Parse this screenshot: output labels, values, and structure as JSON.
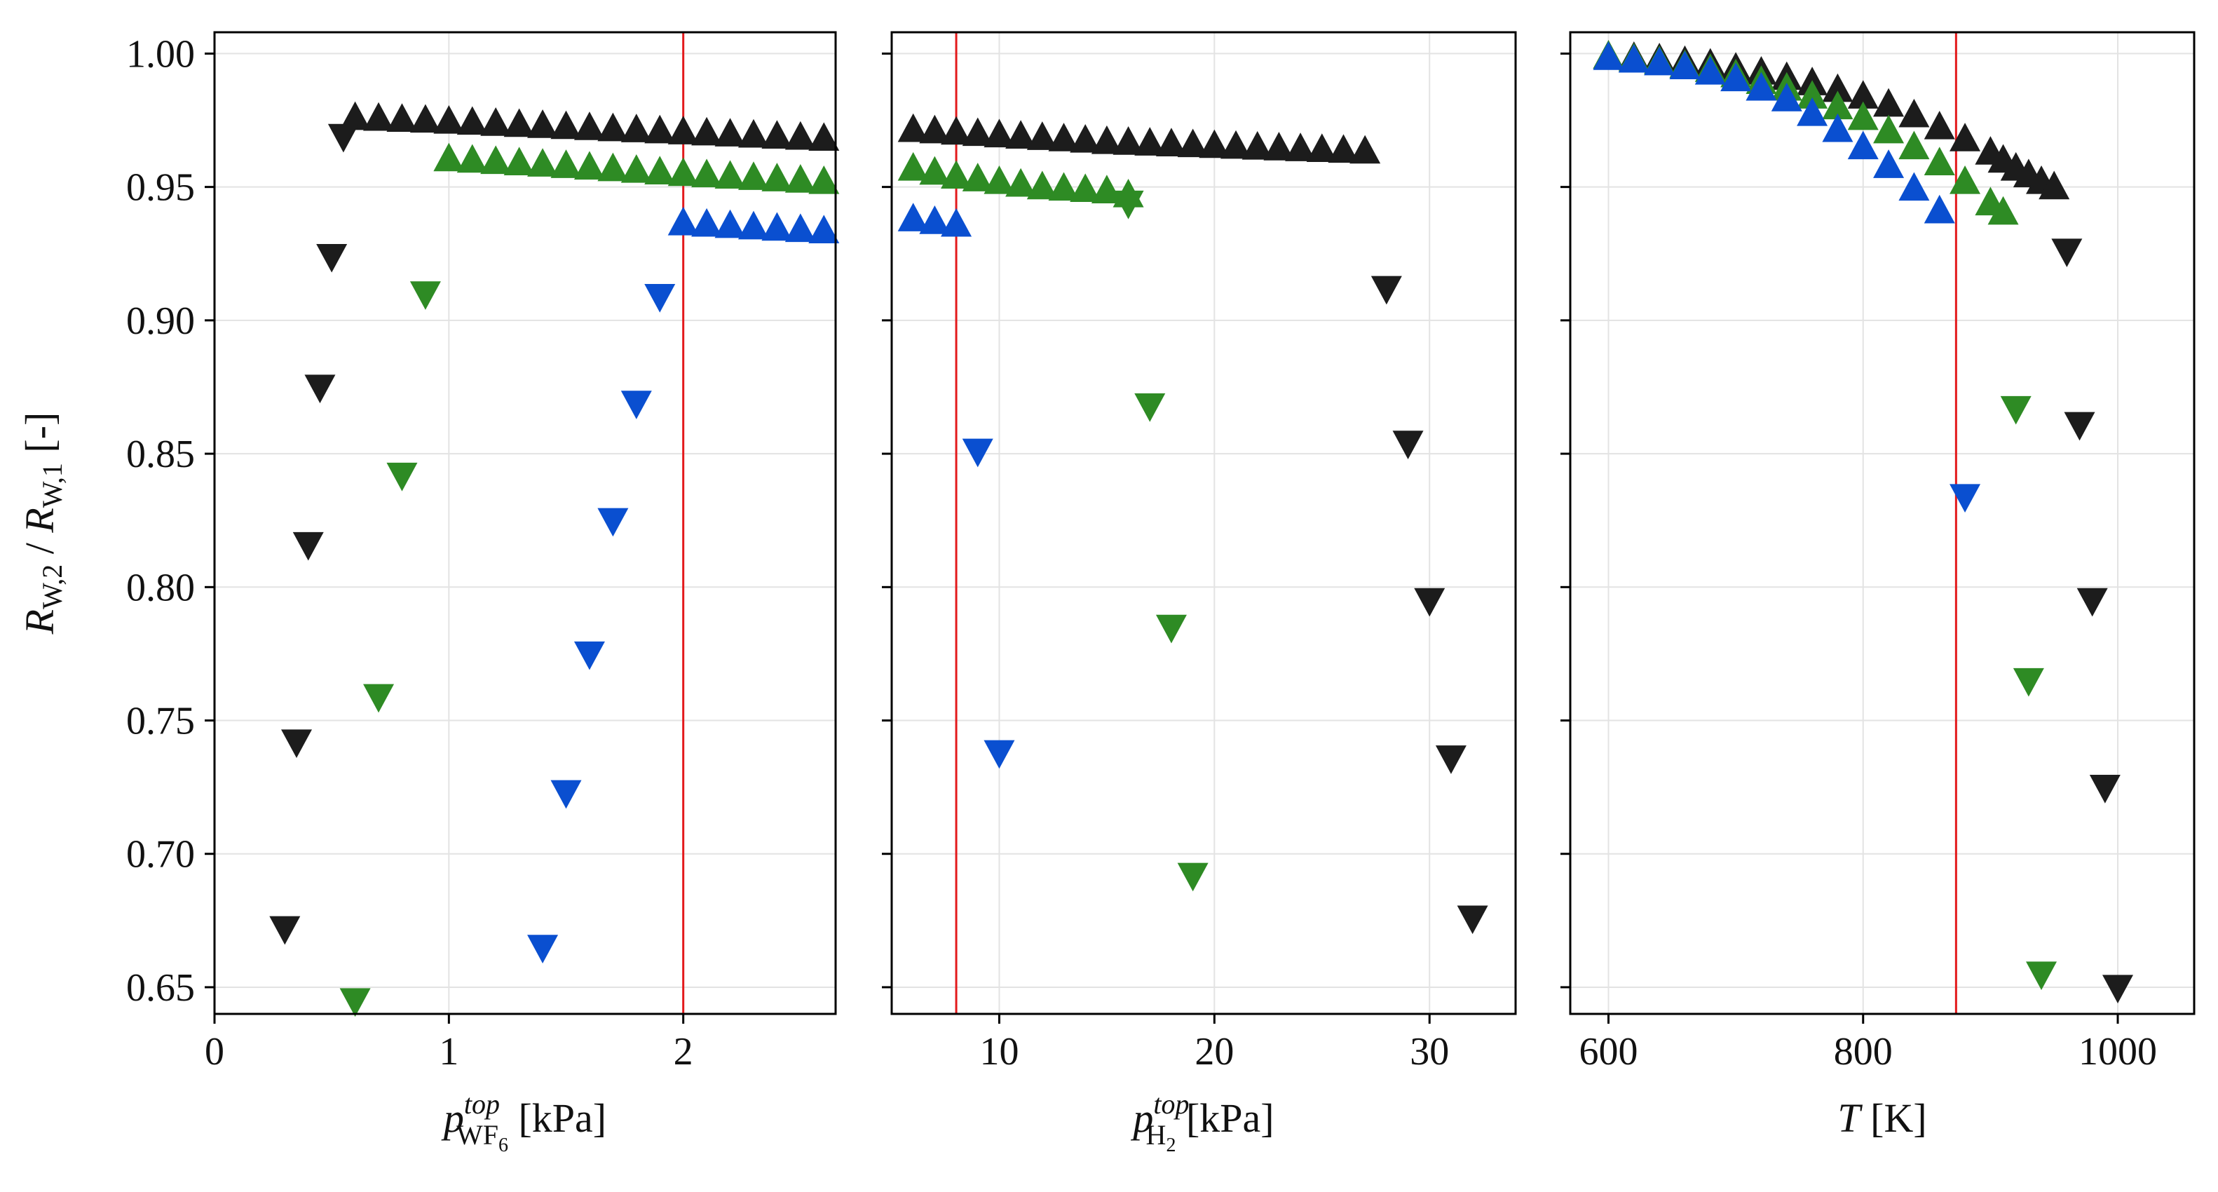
{
  "colors": {
    "black": "#1c1c1c",
    "green": "#2e8b24",
    "blue": "#0a4fd0",
    "ref_line": "#e31a1c",
    "grid": "#e3e3e3"
  },
  "markers": {
    "up": "triangle-up",
    "down": "triangle-down"
  },
  "chart_data": [
    {
      "type": "scatter",
      "xlabel": {
        "sym": "p",
        "sub": "WF",
        "subsub": "6",
        "sup": "top",
        "unit": " [kPa]"
      },
      "ylabel": {
        "r1": "R",
        "sub1": "W,2",
        "mid": " / ",
        "r2": "R",
        "sub2": "W,1",
        "unit": " [-]"
      },
      "xlim": [
        0,
        2.65
      ],
      "ylim": [
        0.64,
        1.008
      ],
      "xticks": [
        0,
        1,
        2
      ],
      "xtick_labels": [
        "0",
        "1",
        "2"
      ],
      "yticks": [
        0.65,
        0.7,
        0.75,
        0.8,
        0.85,
        0.9,
        0.95,
        1.0
      ],
      "ytick_labels": [
        "0.65",
        "0.70",
        "0.75",
        "0.80",
        "0.85",
        "0.90",
        "0.95",
        "1.00"
      ],
      "show_ytick_labels": true,
      "vline": 2.0,
      "series": [
        {
          "color": "black",
          "marker": "up",
          "points": [
            [
              0.6,
              0.976
            ],
            [
              0.7,
              0.9757
            ],
            [
              0.8,
              0.9753
            ],
            [
              0.9,
              0.975
            ],
            [
              1.0,
              0.9746
            ],
            [
              1.1,
              0.9742
            ],
            [
              1.2,
              0.9738
            ],
            [
              1.3,
              0.9734
            ],
            [
              1.4,
              0.973
            ],
            [
              1.5,
              0.9726
            ],
            [
              1.6,
              0.9722
            ],
            [
              1.7,
              0.9718
            ],
            [
              1.8,
              0.9714
            ],
            [
              1.9,
              0.971
            ],
            [
              2.0,
              0.9706
            ],
            [
              2.1,
              0.9702
            ],
            [
              2.2,
              0.9698
            ],
            [
              2.3,
              0.9694
            ],
            [
              2.4,
              0.969
            ],
            [
              2.5,
              0.9686
            ],
            [
              2.6,
              0.9682
            ]
          ]
        },
        {
          "color": "black",
          "marker": "down",
          "points": [
            [
              0.55,
              0.969
            ],
            [
              0.5,
              0.924
            ],
            [
              0.45,
              0.875
            ],
            [
              0.4,
              0.816
            ],
            [
              0.35,
              0.742
            ],
            [
              0.3,
              0.672
            ]
          ]
        },
        {
          "color": "green",
          "marker": "up",
          "points": [
            [
              1.0,
              0.9605
            ],
            [
              1.1,
              0.96
            ],
            [
              1.2,
              0.9595
            ],
            [
              1.3,
              0.959
            ],
            [
              1.4,
              0.9585
            ],
            [
              1.5,
              0.958
            ],
            [
              1.6,
              0.9574
            ],
            [
              1.7,
              0.9568
            ],
            [
              1.8,
              0.9562
            ],
            [
              1.9,
              0.9556
            ],
            [
              2.0,
              0.955
            ],
            [
              2.1,
              0.9545
            ],
            [
              2.2,
              0.954
            ],
            [
              2.3,
              0.9535
            ],
            [
              2.4,
              0.953
            ],
            [
              2.5,
              0.9525
            ],
            [
              2.6,
              0.952
            ]
          ]
        },
        {
          "color": "green",
          "marker": "down",
          "points": [
            [
              0.9,
              0.91
            ],
            [
              0.8,
              0.842
            ],
            [
              0.7,
              0.759
            ],
            [
              0.6,
              0.645
            ]
          ]
        },
        {
          "color": "blue",
          "marker": "up",
          "points": [
            [
              2.0,
              0.9365
            ],
            [
              2.1,
              0.936
            ],
            [
              2.2,
              0.9355
            ],
            [
              2.3,
              0.935
            ],
            [
              2.4,
              0.9345
            ],
            [
              2.5,
              0.934
            ],
            [
              2.6,
              0.9335
            ]
          ]
        },
        {
          "color": "blue",
          "marker": "down",
          "points": [
            [
              1.9,
              0.909
            ],
            [
              1.8,
              0.869
            ],
            [
              1.7,
              0.825
            ],
            [
              1.6,
              0.775
            ],
            [
              1.5,
              0.723
            ],
            [
              1.4,
              0.665
            ]
          ]
        }
      ]
    },
    {
      "type": "scatter",
      "xlabel": {
        "sym": "p",
        "sub": "H",
        "subsub": "2",
        "sup": "top",
        "unit": " [kPa]"
      },
      "xlim": [
        5,
        34
      ],
      "ylim": [
        0.64,
        1.008
      ],
      "xticks": [
        10,
        20,
        30
      ],
      "xtick_labels": [
        "10",
        "20",
        "30"
      ],
      "yticks": [
        0.65,
        0.7,
        0.75,
        0.8,
        0.85,
        0.9,
        0.95,
        1.0
      ],
      "show_ytick_labels": false,
      "vline": 8,
      "series": [
        {
          "color": "black",
          "marker": "up",
          "points": [
            [
              6,
              0.9715
            ],
            [
              7,
              0.971
            ],
            [
              8,
              0.9705
            ],
            [
              9,
              0.97
            ],
            [
              10,
              0.9695
            ],
            [
              11,
              0.969
            ],
            [
              12,
              0.9685
            ],
            [
              13,
              0.968
            ],
            [
              14,
              0.9675
            ],
            [
              15,
              0.967
            ],
            [
              16,
              0.9667
            ],
            [
              17,
              0.9664
            ],
            [
              18,
              0.9661
            ],
            [
              19,
              0.9658
            ],
            [
              20,
              0.9655
            ],
            [
              21,
              0.9652
            ],
            [
              22,
              0.9649
            ],
            [
              23,
              0.9646
            ],
            [
              24,
              0.9643
            ],
            [
              25,
              0.964
            ],
            [
              26,
              0.9637
            ],
            [
              27,
              0.9634
            ]
          ]
        },
        {
          "color": "black",
          "marker": "down",
          "points": [
            [
              28,
              0.912
            ],
            [
              29,
              0.854
            ],
            [
              30,
              0.795
            ],
            [
              31,
              0.736
            ],
            [
              32,
              0.676
            ]
          ]
        },
        {
          "color": "green",
          "marker": "up",
          "points": [
            [
              6,
              0.957
            ],
            [
              7,
              0.9555
            ],
            [
              8,
              0.954
            ],
            [
              9,
              0.953
            ],
            [
              10,
              0.952
            ],
            [
              11,
              0.951
            ],
            [
              12,
              0.95
            ],
            [
              13,
              0.9495
            ],
            [
              14,
              0.949
            ],
            [
              15,
              0.9485
            ],
            [
              16,
              0.947
            ]
          ]
        },
        {
          "color": "green",
          "marker": "down",
          "points": [
            [
              16,
              0.944
            ],
            [
              17,
              0.868
            ],
            [
              18,
              0.785
            ],
            [
              19,
              0.692
            ]
          ]
        },
        {
          "color": "blue",
          "marker": "up",
          "points": [
            [
              6,
              0.938
            ],
            [
              7,
              0.937
            ],
            [
              8,
              0.936
            ]
          ]
        },
        {
          "color": "blue",
          "marker": "down",
          "points": [
            [
              9,
              0.851
            ],
            [
              10,
              0.738
            ]
          ]
        }
      ]
    },
    {
      "type": "scatter",
      "xlabel": {
        "sym": "T",
        "unit": " [K]"
      },
      "xlim": [
        570,
        1060
      ],
      "ylim": [
        0.64,
        1.008
      ],
      "xticks": [
        600,
        800,
        1000
      ],
      "xtick_labels": [
        "600",
        "800",
        "1000"
      ],
      "yticks": [
        0.65,
        0.7,
        0.75,
        0.8,
        0.85,
        0.9,
        0.95,
        1.0
      ],
      "show_ytick_labels": false,
      "vline": 873,
      "series": [
        {
          "color": "black",
          "marker": "up",
          "points": [
            [
              600,
              0.999
            ],
            [
              620,
              0.9985
            ],
            [
              640,
              0.998
            ],
            [
              660,
              0.997
            ],
            [
              680,
              0.996
            ],
            [
              700,
              0.9945
            ],
            [
              720,
              0.993
            ],
            [
              740,
              0.991
            ],
            [
              760,
              0.989
            ],
            [
              780,
              0.9865
            ],
            [
              800,
              0.984
            ],
            [
              820,
              0.981
            ],
            [
              840,
              0.977
            ],
            [
              860,
              0.9725
            ],
            [
              880,
              0.968
            ],
            [
              900,
              0.963
            ],
            [
              910,
              0.96
            ],
            [
              920,
              0.957
            ],
            [
              930,
              0.9545
            ],
            [
              940,
              0.952
            ],
            [
              950,
              0.95
            ]
          ]
        },
        {
          "color": "black",
          "marker": "down",
          "points": [
            [
              960,
              0.926
            ],
            [
              970,
              0.861
            ],
            [
              980,
              0.795
            ],
            [
              990,
              0.725
            ],
            [
              1000,
              0.65
            ]
          ]
        },
        {
          "color": "green",
          "marker": "up",
          "points": [
            [
              600,
              0.999
            ],
            [
              620,
              0.998
            ],
            [
              640,
              0.997
            ],
            [
              660,
              0.9955
            ],
            [
              680,
              0.994
            ],
            [
              700,
              0.992
            ],
            [
              720,
              0.9895
            ],
            [
              740,
              0.987
            ],
            [
              760,
              0.984
            ],
            [
              780,
              0.98
            ],
            [
              800,
              0.976
            ],
            [
              820,
              0.971
            ],
            [
              840,
              0.965
            ],
            [
              860,
              0.959
            ],
            [
              880,
              0.952
            ],
            [
              900,
              0.944
            ],
            [
              910,
              0.9405
            ]
          ]
        },
        {
          "color": "green",
          "marker": "down",
          "points": [
            [
              920,
              0.867
            ],
            [
              930,
              0.765
            ],
            [
              940,
              0.655
            ]
          ]
        },
        {
          "color": "blue",
          "marker": "up",
          "points": [
            [
              600,
              0.9985
            ],
            [
              620,
              0.9975
            ],
            [
              640,
              0.9965
            ],
            [
              660,
              0.995
            ],
            [
              680,
              0.993
            ],
            [
              700,
              0.9905
            ],
            [
              720,
              0.987
            ],
            [
              740,
              0.983
            ],
            [
              760,
              0.9775
            ],
            [
              780,
              0.9715
            ],
            [
              800,
              0.965
            ],
            [
              820,
              0.958
            ],
            [
              840,
              0.9495
            ],
            [
              860,
              0.941
            ]
          ]
        },
        {
          "color": "blue",
          "marker": "down",
          "points": [
            [
              880,
              0.834
            ]
          ]
        }
      ]
    }
  ]
}
